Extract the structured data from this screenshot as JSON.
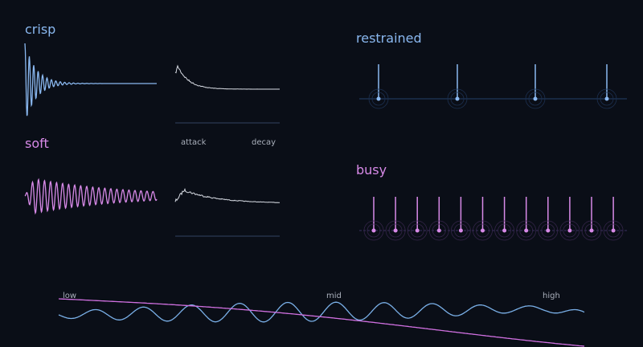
{
  "envelopes": {
    "rows": [
      "crisp",
      "soft"
    ],
    "axis": [
      "attack",
      "decay"
    ]
  },
  "rhythms": [
    "restrained",
    "busy"
  ],
  "spectrum": [
    "low",
    "mid",
    "high"
  ]
}
